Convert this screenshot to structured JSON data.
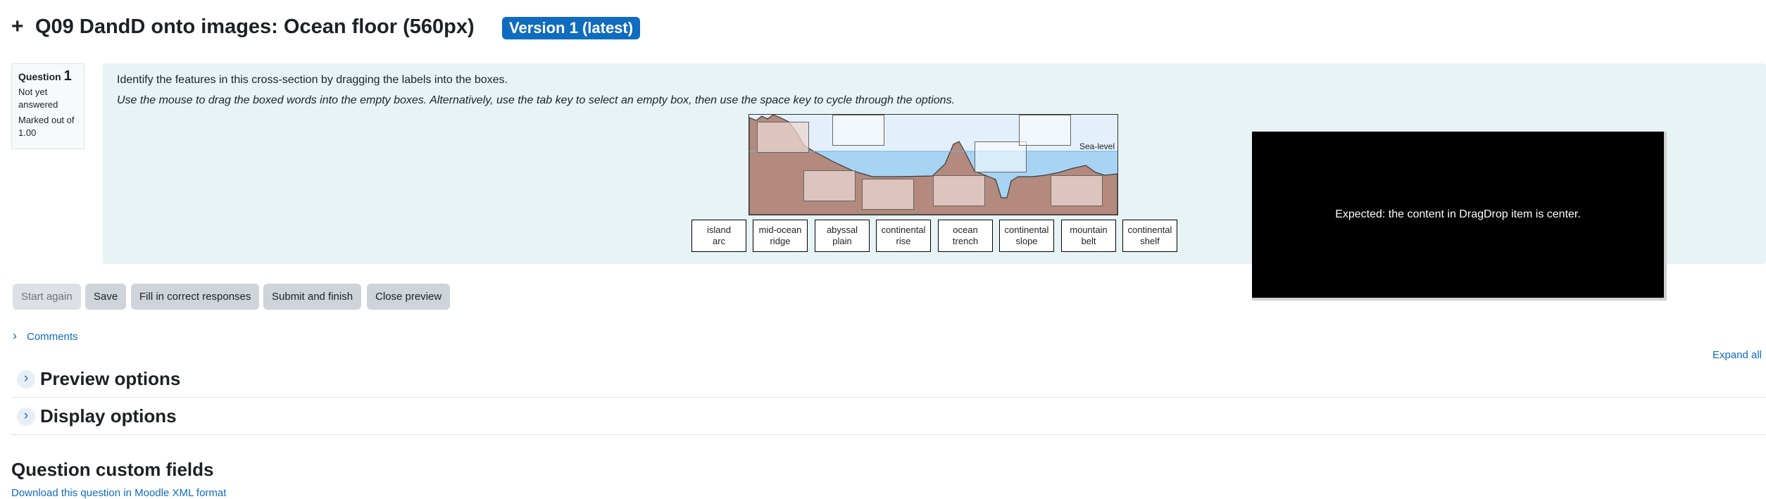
{
  "header": {
    "expand_symbol": "+",
    "title": "Q09 DandD onto images: Ocean floor (560px)",
    "version_badge": "Version 1 (latest)"
  },
  "question_info": {
    "label": "Question",
    "number": "1",
    "state": "Not yet answered",
    "marks": "Marked out of 1.00"
  },
  "question": {
    "prompt": "Identify the features in this cross-section by dragging the labels into the boxes.",
    "instructions": "Use the mouse to drag the boxed words into the empty boxes. Alternatively, use the tab key to select an empty box, then use the space key to cycle through the options.",
    "diagram": {
      "sea_level_label": "Sea-level",
      "colors": {
        "sky": "#e3f0fb",
        "sea": "#a8d4f3",
        "rock": "#b38a7d"
      }
    },
    "drag_items": [
      {
        "line1": "island",
        "line2": "arc"
      },
      {
        "line1": "mid-ocean",
        "line2": "ridge"
      },
      {
        "line1": "abyssal",
        "line2": "plain"
      },
      {
        "line1": "continental",
        "line2": "rise"
      },
      {
        "line1": "ocean",
        "line2": "trench"
      },
      {
        "line1": "continental",
        "line2": "slope"
      },
      {
        "line1": "mountain",
        "line2": "belt"
      },
      {
        "line1": "continental",
        "line2": "shelf"
      }
    ]
  },
  "overlay": {
    "message": "Expected: the content in DragDrop item is center."
  },
  "actions": {
    "start_again": "Start again",
    "save": "Save",
    "fill_correct": "Fill in correct responses",
    "submit_finish": "Submit and finish",
    "close_preview": "Close preview"
  },
  "comments_link": "Comments",
  "expand_all": "Expand all",
  "sections": {
    "preview_options": "Preview options",
    "display_options": "Display options"
  },
  "custom_fields_title": "Question custom fields",
  "download_link": "Download this question in Moodle XML format",
  "colors": {
    "accent": "#0f6cbf",
    "question_bg": "#e7f3f5",
    "button_bg": "#ced4da"
  }
}
